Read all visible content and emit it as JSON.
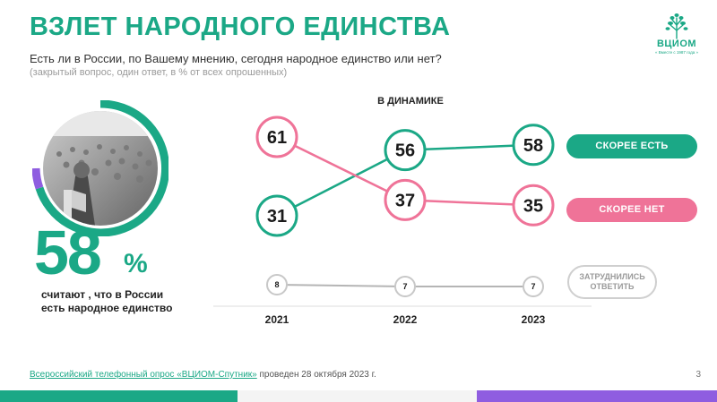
{
  "header": {
    "title": "ВЗЛЕТ НАРОДНОГО ЕДИНСТВА",
    "question": "Есть ли в России, по Вашему мнению, сегодня народное единство или нет?",
    "subquestion": "(закрытый вопрос, один ответ, в % от всех опрошенных)"
  },
  "logo": {
    "brand": "ВЦИОМ",
    "since": "« Вместе с 1987 года »"
  },
  "highlight": {
    "value": "58",
    "unit": "%",
    "caption": "считают , что в России есть народное единство"
  },
  "chart_data": {
    "type": "line",
    "title": "В ДИНАМИКЕ",
    "categories": [
      "2021",
      "2022",
      "2023"
    ],
    "series": [
      {
        "name": "СКОРЕЕ ЕСТЬ",
        "values": [
          31,
          56,
          58
        ],
        "color": "#1ba886"
      },
      {
        "name": "СКОРЕЕ НЕТ",
        "values": [
          61,
          37,
          35
        ],
        "color": "#ef7398"
      },
      {
        "name": "ЗАТРУДНИЛИСЬ ОТВЕТИТЬ",
        "values": [
          8,
          7,
          7
        ],
        "color": "#b5b5b5"
      }
    ]
  },
  "legend": {
    "yes": "СКОРЕЕ ЕСТЬ",
    "no": "СКОРЕЕ НЕТ",
    "hard": "ЗАТРУДНИЛИСЬ ОТВЕТИТЬ"
  },
  "footer": {
    "source_link": "Всероссийский телефонный опрос «ВЦИОМ-Спутник»",
    "source_rest": " проведен 28 октября 2023 г.",
    "page": "3"
  },
  "colors": {
    "accent": "#1ba886",
    "pink": "#ef7398",
    "purple": "#8f5de0",
    "gray": "#b5b5b5"
  }
}
